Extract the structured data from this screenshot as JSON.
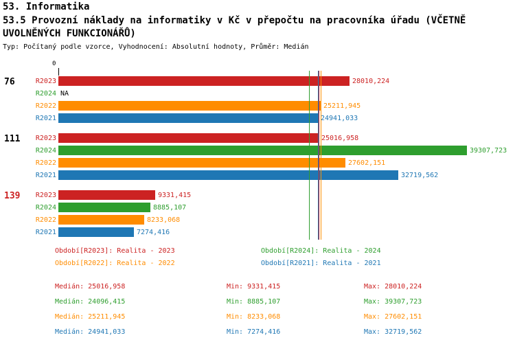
{
  "header": {
    "line1": "53. Informatika",
    "line2": "53.5 Provozní náklady na informatiky v Kč v přepočtu na pracovníka úřadu (VČETNĚ UVOLNĚNÝCH FUNKCIONÁŘŮ)",
    "meta": "Typ: Počítaný podle vzorce, Vyhodnocení: Absolutní hodnoty, Průměr: Medián"
  },
  "axis": {
    "origin_label": "0"
  },
  "chart_data": {
    "type": "bar",
    "orientation": "horizontal",
    "xmax": 39307.723,
    "xmin": 0,
    "na_color": "#000000",
    "series_colors": {
      "R2023": "#cc2222",
      "R2024": "#2e9e2e",
      "R2022": "#ff8c00",
      "R2021": "#1f77b4"
    },
    "groups": [
      {
        "label": "76",
        "label_color": "#000000",
        "bars": [
          {
            "series": "R2023",
            "value": 28010.224,
            "value_label": "28010,224"
          },
          {
            "series": "R2024",
            "value": null,
            "value_label": "NA"
          },
          {
            "series": "R2022",
            "value": 25211.945,
            "value_label": "25211,945"
          },
          {
            "series": "R2021",
            "value": 24941.033,
            "value_label": "24941,033"
          }
        ]
      },
      {
        "label": "111",
        "label_color": "#000000",
        "bars": [
          {
            "series": "R2023",
            "value": 25016.958,
            "value_label": "25016,958"
          },
          {
            "series": "R2024",
            "value": 39307.723,
            "value_label": "39307,723"
          },
          {
            "series": "R2022",
            "value": 27602.151,
            "value_label": "27602,151"
          },
          {
            "series": "R2021",
            "value": 32719.562,
            "value_label": "32719,562"
          }
        ]
      },
      {
        "label": "139",
        "label_color": "#cc2222",
        "bars": [
          {
            "series": "R2023",
            "value": 9331.415,
            "value_label": "9331,415"
          },
          {
            "series": "R2024",
            "value": 8885.107,
            "value_label": "8885,107"
          },
          {
            "series": "R2022",
            "value": 8233.068,
            "value_label": "8233,068"
          },
          {
            "series": "R2021",
            "value": 7274.416,
            "value_label": "7274,416"
          }
        ]
      }
    ],
    "medians": [
      {
        "series": "R2023",
        "value": 25016.958
      },
      {
        "series": "R2024",
        "value": 24096.415
      },
      {
        "series": "R2022",
        "value": 25211.945
      },
      {
        "series": "R2021",
        "value": 24941.033
      }
    ]
  },
  "legend": {
    "items": [
      {
        "text": "Období[R2023]: Realita - 2023",
        "color": "#cc2222"
      },
      {
        "text": "Období[R2024]: Realita - 2024",
        "color": "#2e9e2e"
      },
      {
        "text": "Období[R2022]: Realita - 2022",
        "color": "#ff8c00"
      },
      {
        "text": "Období[R2021]: Realita - 2021",
        "color": "#1f77b4"
      }
    ]
  },
  "stats": {
    "rows": [
      {
        "median": "Medián: 25016,958",
        "min": "Min: 9331,415",
        "max": "Max: 28010,224",
        "color": "#cc2222"
      },
      {
        "median": "Medián: 24096,415",
        "min": "Min: 8885,107",
        "max": "Max: 39307,723",
        "color": "#2e9e2e"
      },
      {
        "median": "Medián: 25211,945",
        "min": "Min: 8233,068",
        "max": "Max: 27602,151",
        "color": "#ff8c00"
      },
      {
        "median": "Medián: 24941,033",
        "min": "Min: 7274,416",
        "max": "Max: 32719,562",
        "color": "#1f77b4"
      }
    ]
  }
}
